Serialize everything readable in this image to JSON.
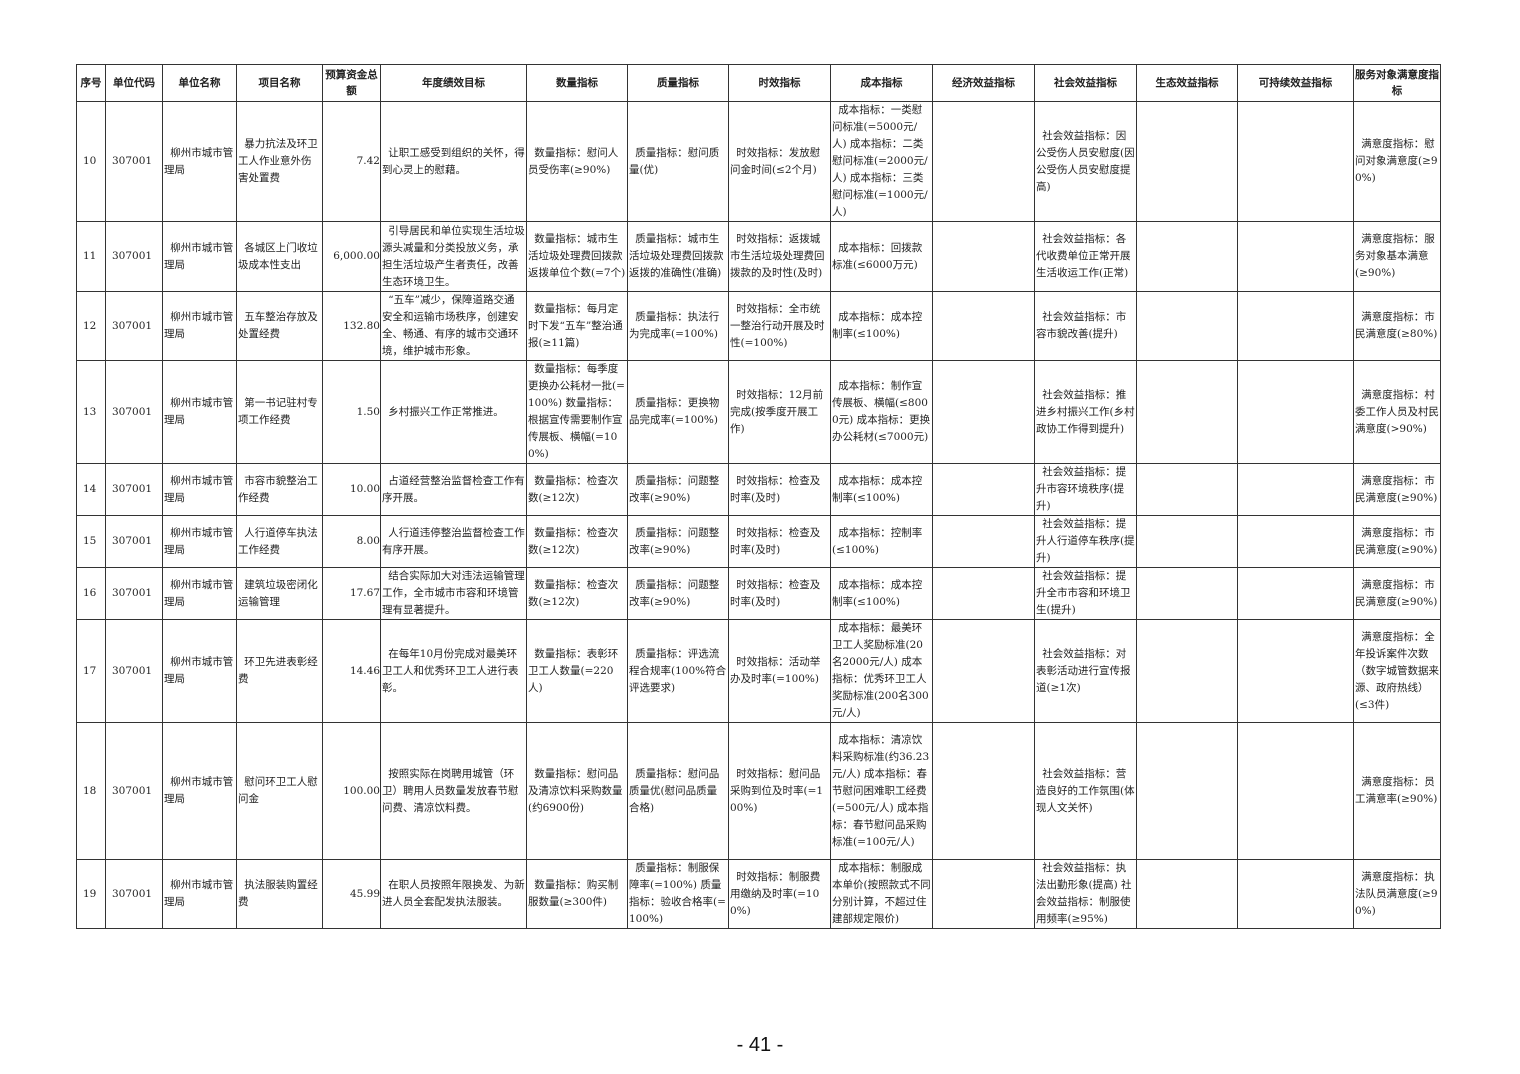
{
  "headers": [
    "序号",
    "单位代码",
    "单位名称",
    "项目名称",
    "预算资金总额",
    "年度绩效目标",
    "数量指标",
    "质量指标",
    "时效指标",
    "成本指标",
    "经济效益指标",
    "社会效益指标",
    "生态效益指标",
    "可持续效益指标",
    "服务对象满意度指标"
  ],
  "rows": [
    [
      "10",
      "307001",
      "柳州市城市管理局",
      "暴力抗法及环卫工人作业意外伤害处置费",
      "7.42",
      "让职工感受到组织的关怀，得到心灵上的慰藉。",
      "数量指标：慰问人员受伤率(≥90%)",
      "质量指标：慰问质量(优)",
      "时效指标：发放慰问金时间(≤2个月)",
      "成本指标：一类慰问标准(=5000元/人) 成本指标：二类慰问标准(=2000元/人) 成本指标：三类慰问标准(=1000元/人)",
      "",
      "社会效益指标：因公受伤人员安慰度(因公受伤人员安慰度提高)",
      "",
      "",
      "满意度指标：慰问对象满意度(≥90%)"
    ],
    [
      "11",
      "307001",
      "柳州市城市管理局",
      "各城区上门收垃圾成本性支出",
      "6,000.00",
      "引导居民和单位实现生活垃圾源头减量和分类投放义务，承担生活垃圾产生者责任，改善生态环境卫生。",
      "数量指标：城市生活垃圾处理费回拨款返拨单位个数(=7个)",
      "质量指标：城市生活垃圾处理费回拨款返拨的准确性(准确)",
      "时效指标：返拨城市生活垃圾处理费回拨款的及时性(及时)",
      "成本指标：回拨款标准(≤6000万元)",
      "",
      "社会效益指标：各代收费单位正常开展生活收运工作(正常)",
      "",
      "",
      "满意度指标：服务对象基本满意(≥90%)"
    ],
    [
      "12",
      "307001",
      "柳州市城市管理局",
      "五车整治存放及处置经费",
      "132.80",
      "“五车”减少，保障道路交通安全和运输市场秩序，创建安全、畅通、有序的城市交通环境，维护城市形象。",
      "数量指标：每月定时下发“五车”整治通报(≥11篇)",
      "质量指标：执法行为完成率(=100%)",
      "时效指标：全市统一整治行动开展及时性(=100%)",
      "成本指标：成本控制率(≤100%)",
      "",
      "社会效益指标：市容市貌改善(提升)",
      "",
      "",
      "满意度指标：市民满意度(≥80%)"
    ],
    [
      "13",
      "307001",
      "柳州市城市管理局",
      "第一书记驻村专项工作经费",
      "1.50",
      "乡村振兴工作正常推进。",
      "数量指标：每季度更换办公耗材一批(=100%) 数量指标：根据宣传需要制作宣传展板、横幅(=100%)",
      "质量指标：更换物品完成率(=100%)",
      "时效指标：12月前完成(按季度开展工作)",
      "成本指标：制作宣传展板、横幅(≤8000元) 成本指标：更换办公耗材(≤7000元)",
      "",
      "社会效益指标：推进乡村振兴工作(乡村政协工作得到提升)",
      "",
      "",
      "满意度指标：村委工作人员及村民满意度(>90%)"
    ],
    [
      "14",
      "307001",
      "柳州市城市管理局",
      "市容市貌整治工作经费",
      "10.00",
      "占道经营整治监督检查工作有序开展。",
      "数量指标：检查次数(≥12次)",
      "质量指标：问题整改率(≥90%)",
      "时效指标：检查及时率(及时)",
      "成本指标：成本控制率(≤100%)",
      "",
      "社会效益指标：提升市容环境秩序(提升)",
      "",
      "",
      "满意度指标：市民满意度(≥90%)"
    ],
    [
      "15",
      "307001",
      "柳州市城市管理局",
      "人行道停车执法工作经费",
      "8.00",
      "人行道违停整治监督检查工作有序开展。",
      "数量指标：检查次数(≥12次)",
      "质量指标：问题整改率(≥90%)",
      "时效指标：检查及时率(及时)",
      "成本指标：控制率(≤100%)",
      "",
      "社会效益指标：提升人行道停车秩序(提升)",
      "",
      "",
      "满意度指标：市民满意度(≥90%)"
    ],
    [
      "16",
      "307001",
      "柳州市城市管理局",
      "建筑垃圾密闭化运输管理",
      "17.67",
      "结合实际加大对违法运输管理工作，全市城市市容和环境管理有显著提升。",
      "数量指标：检查次数(≥12次)",
      "质量指标：问题整改率(≥90%)",
      "时效指标：检查及时率(及时)",
      "成本指标：成本控制率(≤100%)",
      "",
      "社会效益指标：提升全市市容和环境卫生(提升)",
      "",
      "",
      "满意度指标：市民满意度(≥90%)"
    ],
    [
      "17",
      "307001",
      "柳州市城市管理局",
      "环卫先进表彰经费",
      "14.46",
      "在每年10月份完成对最美环卫工人和优秀环卫工人进行表彰。",
      "数量指标：表彰环卫工人数量(=220人)",
      "质量指标：评选流程合规率(100%符合评选要求)",
      "时效指标：活动举办及时率(=100%)",
      "成本指标：最美环卫工人奖励标准(20名2000元/人) 成本指标：优秀环卫工人奖励标准(200名300元/人)",
      "",
      "社会效益指标：对表彰活动进行宣传报道(≥1次)",
      "",
      "",
      "满意度指标：全年投诉案件次数（数字城管数据来源、政府热线）(≤3件)"
    ],
    [
      "18",
      "307001",
      "柳州市城市管理局",
      "慰问环卫工人慰问金",
      "100.00",
      "按照实际在岗聘用城管（环卫）聘用人员数量发放春节慰问费、清凉饮料费。",
      "数量指标：慰问品及清凉饮料采购数量(约6900份)",
      "质量指标：慰问品质量优(慰问品质量合格)",
      "时效指标：慰问品采购到位及时率(=100%)",
      "成本指标：清凉饮料采购标准(约36.23元/人) 成本指标：春节慰问困难职工经费(=500元/人) 成本指标：春节慰问品采购标准(=100元/人)",
      "",
      "社会效益指标：营造良好的工作氛围(体现人文关怀)",
      "",
      "",
      "满意度指标：员工满意率(≥90%)"
    ],
    [
      "19",
      "307001",
      "柳州市城市管理局",
      "执法服装购置经费",
      "45.99",
      "在职人员按照年限换发、为新进人员全套配发执法服装。",
      "数量指标：购买制服数量(≥300件)",
      "质量指标：制服保障率(=100%) 质量指标：验收合格率(=100%)",
      "时效指标：制服费用缴纳及时率(=100%)",
      "成本指标：制服成本单价(按照款式不同分别计算，不超过住建部规定限价)",
      "",
      "社会效益指标：执法出勤形象(提高) 社会效益指标：制服使用频率(≥95%)",
      "",
      "",
      "满意度指标：执法队员满意度(≥90%)"
    ]
  ],
  "page_number": "- 41 -"
}
